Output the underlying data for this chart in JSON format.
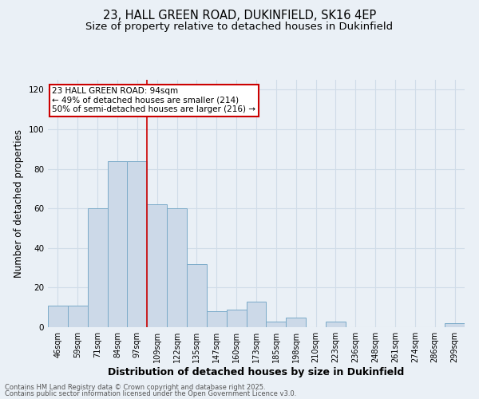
{
  "title_line1": "23, HALL GREEN ROAD, DUKINFIELD, SK16 4EP",
  "title_line2": "Size of property relative to detached houses in Dukinfield",
  "xlabel": "Distribution of detached houses by size in Dukinfield",
  "ylabel": "Number of detached properties",
  "categories": [
    "46sqm",
    "59sqm",
    "71sqm",
    "84sqm",
    "97sqm",
    "109sqm",
    "122sqm",
    "135sqm",
    "147sqm",
    "160sqm",
    "173sqm",
    "185sqm",
    "198sqm",
    "210sqm",
    "223sqm",
    "236sqm",
    "248sqm",
    "261sqm",
    "274sqm",
    "286sqm",
    "299sqm"
  ],
  "values": [
    11,
    11,
    60,
    84,
    84,
    62,
    60,
    32,
    8,
    9,
    13,
    3,
    5,
    0,
    3,
    0,
    0,
    0,
    0,
    0,
    2
  ],
  "bar_color": "#ccd9e8",
  "bar_edge_color": "#7aaac8",
  "red_line_x": 4.5,
  "ylim": [
    0,
    125
  ],
  "yticks": [
    0,
    20,
    40,
    60,
    80,
    100,
    120
  ],
  "annotation_text": "23 HALL GREEN ROAD: 94sqm\n← 49% of detached houses are smaller (214)\n50% of semi-detached houses are larger (216) →",
  "annotation_box_facecolor": "#ffffff",
  "annotation_box_edgecolor": "#cc0000",
  "footer_line1": "Contains HM Land Registry data © Crown copyright and database right 2025.",
  "footer_line2": "Contains public sector information licensed under the Open Government Licence v3.0.",
  "bg_color": "#eaf0f6",
  "grid_color": "#d0dce8",
  "title_fontsize": 10.5,
  "subtitle_fontsize": 9.5,
  "tick_fontsize": 7,
  "ylabel_fontsize": 8.5,
  "xlabel_fontsize": 9,
  "footer_fontsize": 6,
  "ann_fontsize": 7.5
}
